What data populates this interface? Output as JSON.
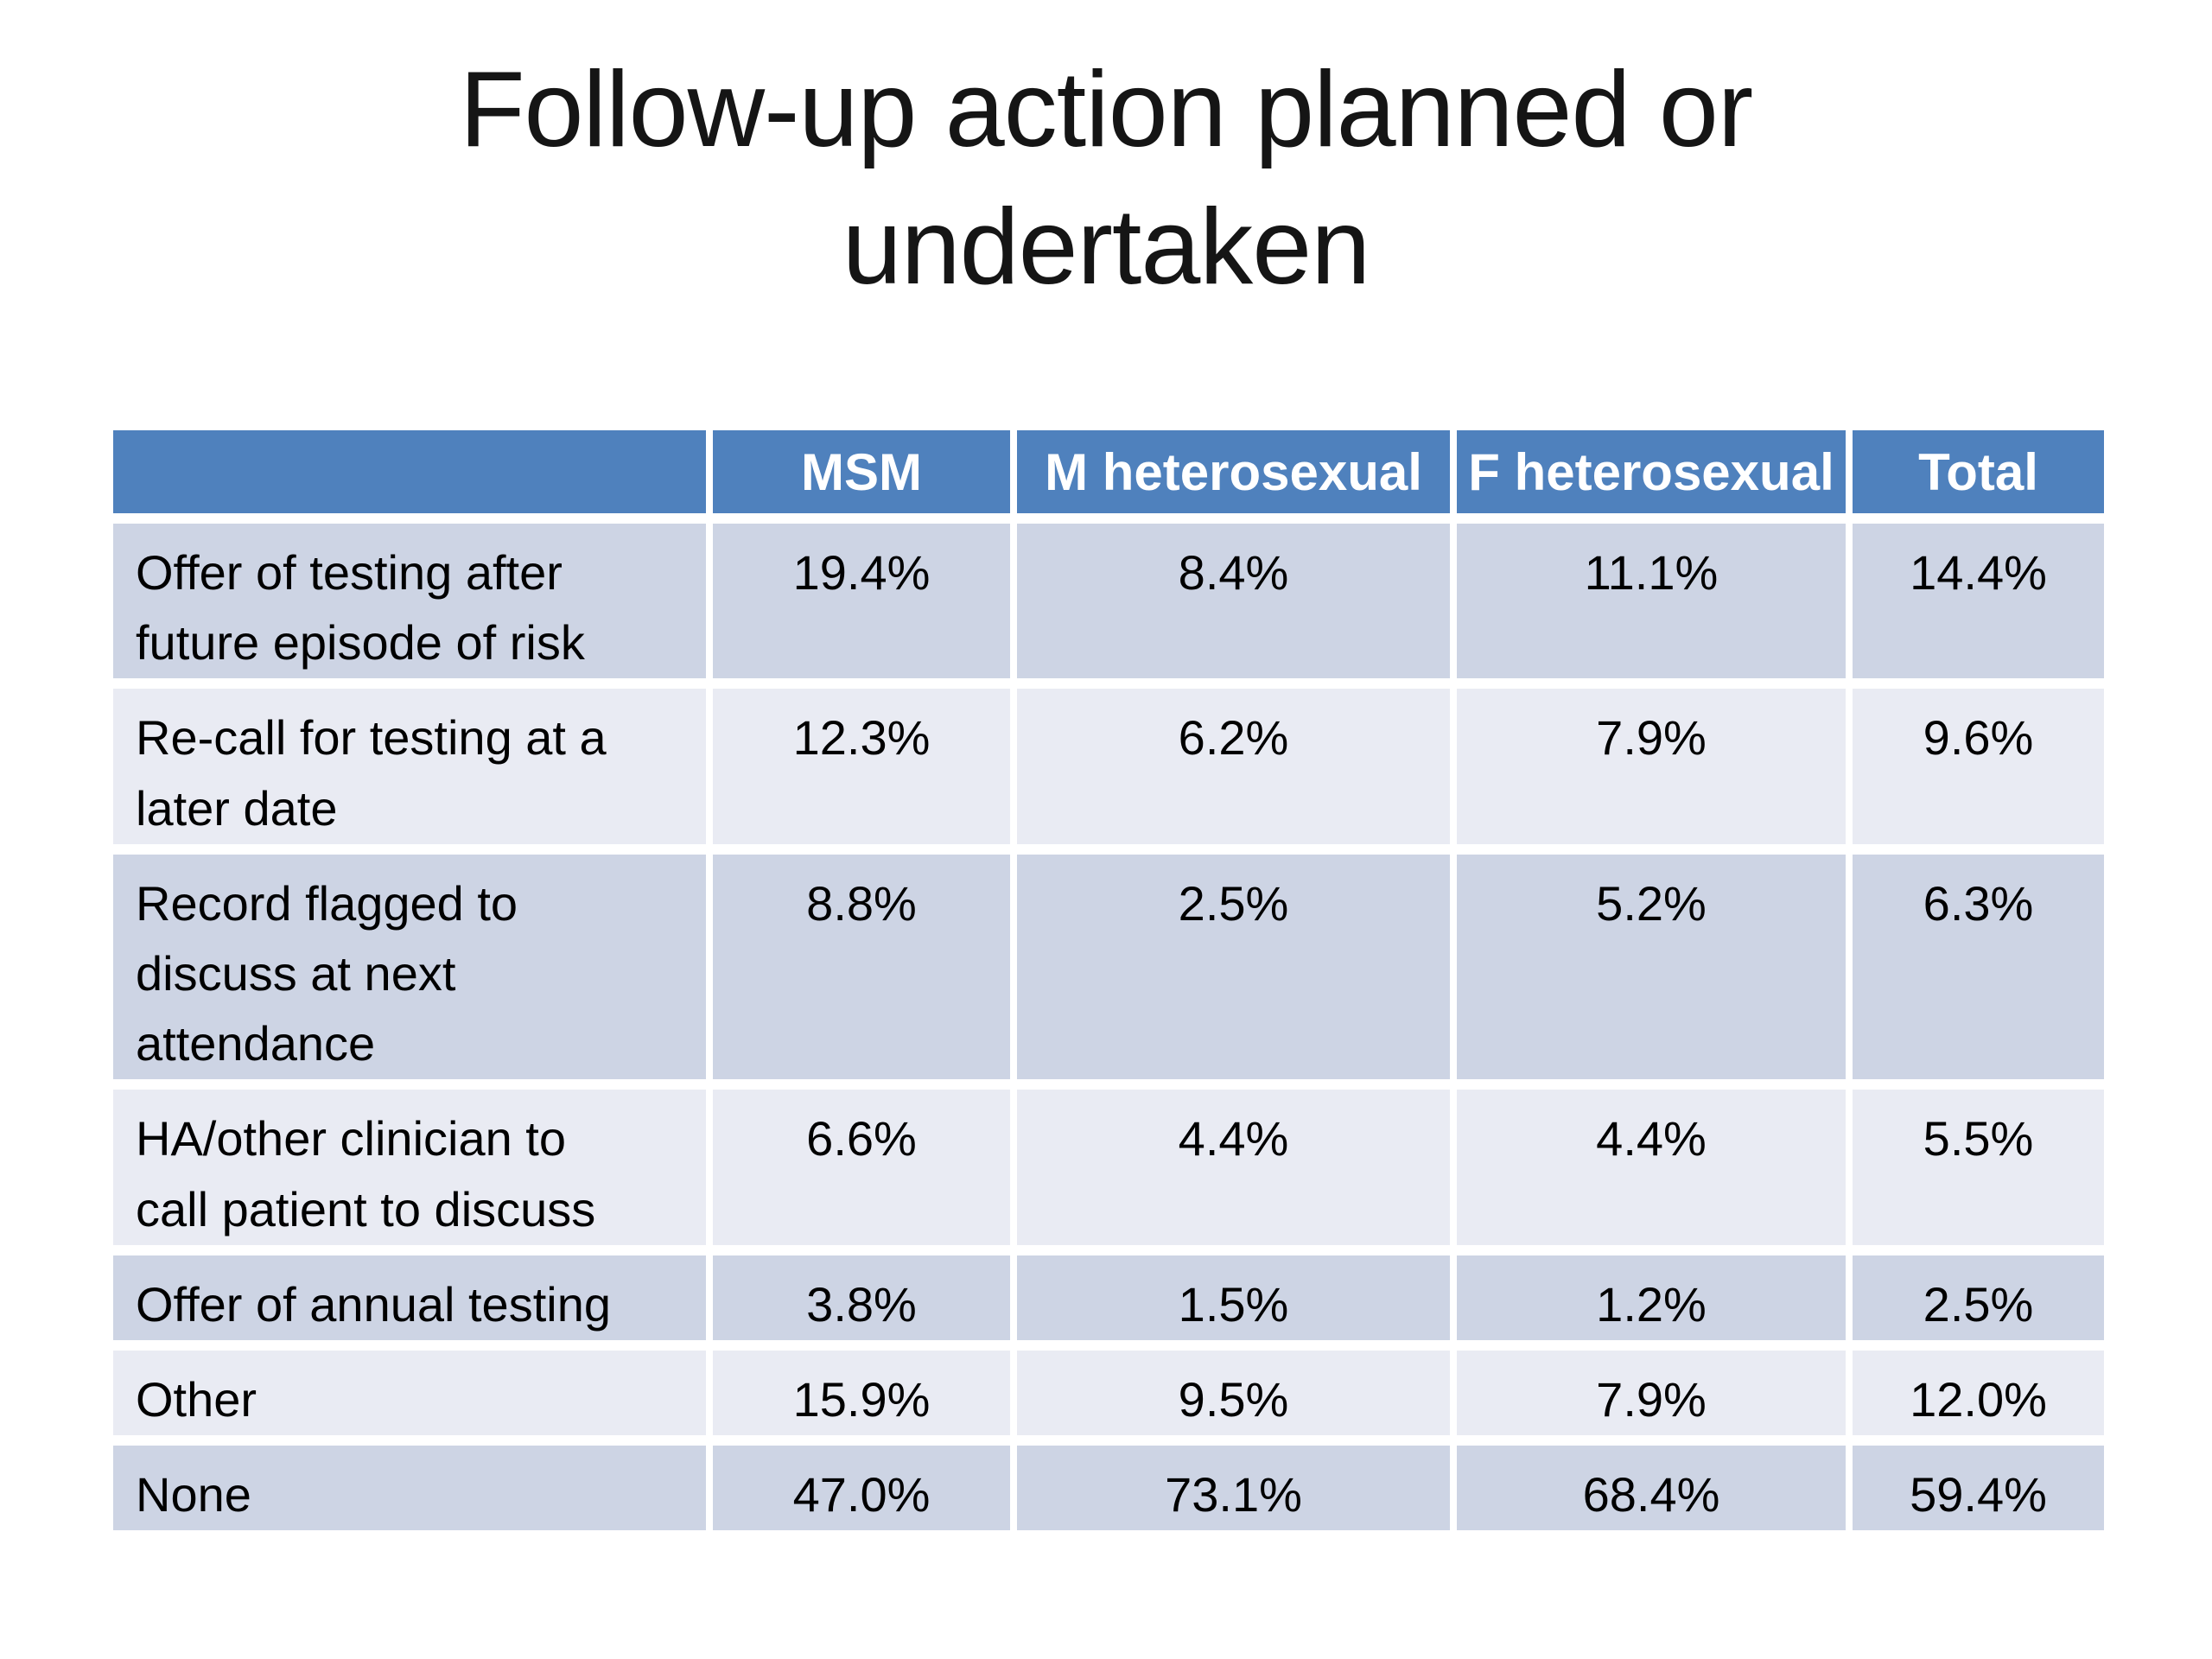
{
  "slide": {
    "title_lines": [
      "Follow-up action planned or",
      "undertaken"
    ]
  },
  "table": {
    "columns": [
      "",
      "MSM",
      "M heterosexual",
      "F heterosexual",
      "Total"
    ],
    "rows": [
      {
        "label": "Offer of testing after\nfuture episode of risk",
        "values": [
          "19.4%",
          "8.4%",
          "11.1%",
          "14.4%"
        ]
      },
      {
        "label": "Re-call for testing at a\nlater date",
        "values": [
          "12.3%",
          "6.2%",
          "7.9%",
          "9.6%"
        ]
      },
      {
        "label": "Record flagged  to\ndiscuss at next\nattendance",
        "values": [
          "8.8%",
          "2.5%",
          "5.2%",
          "6.3%"
        ]
      },
      {
        "label": "HA/other clinician to\ncall patient to discuss",
        "values": [
          "6.6%",
          "4.4%",
          "4.4%",
          "5.5%"
        ]
      },
      {
        "label": "Offer of annual testing",
        "values": [
          "3.8%",
          "1.5%",
          "1.2%",
          "2.5%"
        ]
      },
      {
        "label": "Other",
        "values": [
          "15.9%",
          "9.5%",
          "7.9%",
          "12.0%"
        ]
      },
      {
        "label": "None",
        "values": [
          "47.0%",
          "73.1%",
          "68.4%",
          "59.4%"
        ]
      }
    ],
    "colors": {
      "header_bg": "#4f81bd",
      "header_text": "#ffffff",
      "band_dark": "#cdd4e4",
      "band_light": "#e9ebf3",
      "border": "#ffffff",
      "body_text": "#000000"
    }
  },
  "chart_data": {
    "type": "table",
    "title": "Follow-up action planned or undertaken",
    "categories": [
      "MSM",
      "M heterosexual",
      "F heterosexual",
      "Total"
    ],
    "series": [
      {
        "name": "Offer of testing after future episode of risk",
        "values": [
          19.4,
          8.4,
          11.1,
          14.4
        ]
      },
      {
        "name": "Re-call for testing at a later date",
        "values": [
          12.3,
          6.2,
          7.9,
          9.6
        ]
      },
      {
        "name": "Record flagged to discuss at next attendance",
        "values": [
          8.8,
          2.5,
          5.2,
          6.3
        ]
      },
      {
        "name": "HA/other clinician to call patient to discuss",
        "values": [
          6.6,
          4.4,
          4.4,
          5.5
        ]
      },
      {
        "name": "Offer of annual testing",
        "values": [
          3.8,
          1.5,
          1.2,
          2.5
        ]
      },
      {
        "name": "Other",
        "values": [
          15.9,
          9.5,
          7.9,
          12.0
        ]
      },
      {
        "name": "None",
        "values": [
          47.0,
          73.1,
          68.4,
          59.4
        ]
      }
    ],
    "unit": "%"
  }
}
